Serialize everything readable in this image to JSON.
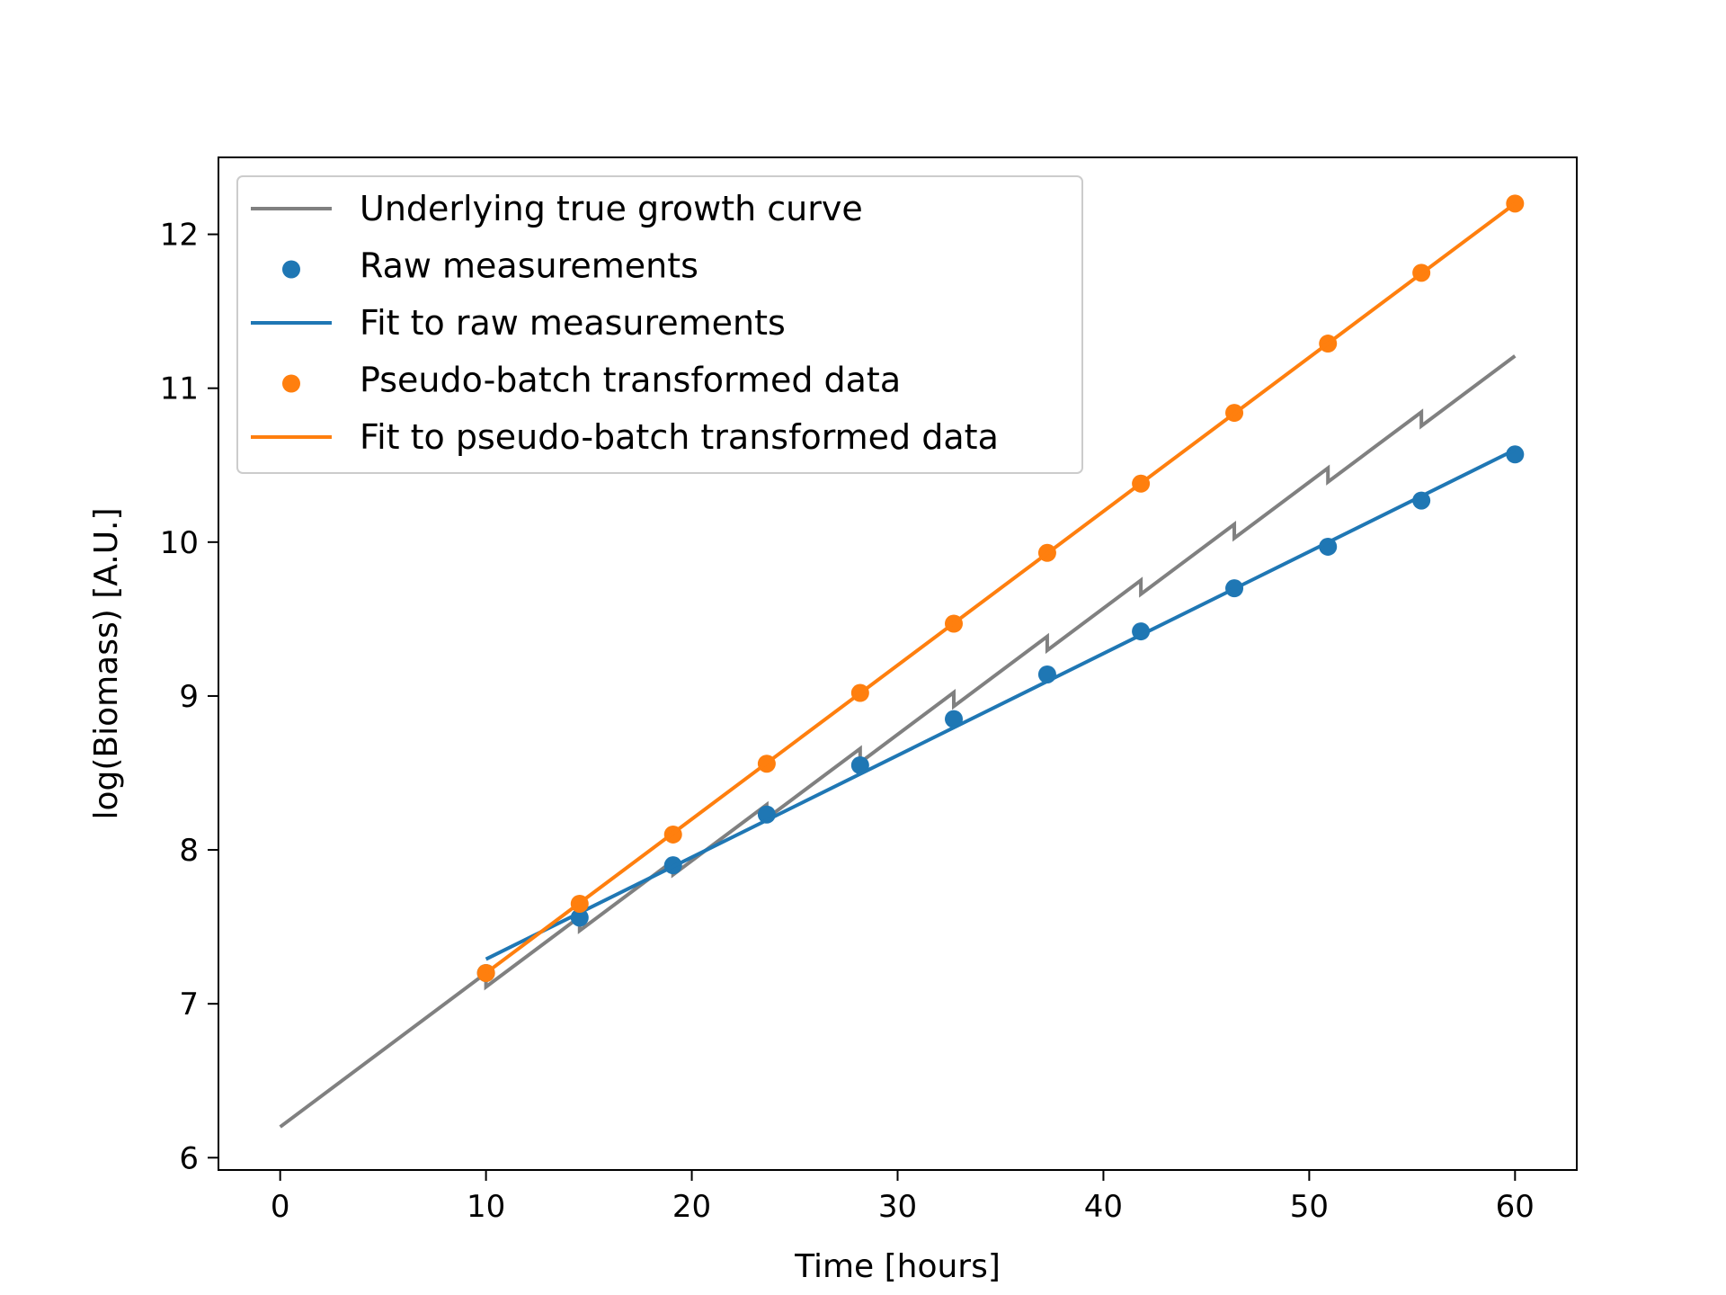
{
  "chart_data": {
    "type": "line",
    "xlabel": "Time [hours]",
    "ylabel": "log(Biomass) [A.U.]",
    "xlim": [
      -3,
      63
    ],
    "ylim": [
      5.92,
      12.5
    ],
    "xticks": [
      0,
      10,
      20,
      30,
      40,
      50,
      60
    ],
    "yticks": [
      6,
      7,
      8,
      9,
      10,
      11,
      12
    ],
    "grid": false,
    "legend_position": "top-left",
    "colors": {
      "true_curve": "#808080",
      "raw": "#1f77b4",
      "pseudo": "#ff7f0e"
    },
    "series": [
      {
        "name": "Underlying true growth curve",
        "kind": "line",
        "dilution_times": [
          10,
          14.55,
          19.09,
          23.64,
          28.18,
          32.73,
          37.27,
          41.82,
          46.36,
          50.91,
          55.45
        ],
        "dilution_drop": 0.09,
        "start": {
          "x": 0,
          "y": 6.2
        },
        "slope_per_hour": 0.1
      },
      {
        "name": "Raw measurements",
        "kind": "scatter",
        "x": [
          10,
          14.55,
          19.09,
          23.64,
          28.18,
          32.73,
          37.27,
          41.82,
          46.36,
          50.91,
          55.45,
          60
        ],
        "y": [
          7.2,
          7.56,
          7.9,
          8.23,
          8.55,
          8.85,
          9.14,
          9.42,
          9.7,
          9.97,
          10.27,
          10.57
        ]
      },
      {
        "name": "Fit to raw measurements",
        "kind": "line",
        "x": [
          10,
          60
        ],
        "y": [
          7.29,
          10.6
        ]
      },
      {
        "name": "Pseudo-batch transformed data",
        "kind": "scatter",
        "x": [
          10,
          14.55,
          19.09,
          23.64,
          28.18,
          32.73,
          37.27,
          41.82,
          46.36,
          50.91,
          55.45,
          60
        ],
        "y": [
          7.2,
          7.65,
          8.1,
          8.56,
          9.02,
          9.47,
          9.93,
          10.38,
          10.84,
          11.29,
          11.75,
          12.2
        ]
      },
      {
        "name": "Fit to pseudo-batch transformed data",
        "kind": "line",
        "x": [
          10,
          60
        ],
        "y": [
          7.2,
          12.2
        ]
      }
    ]
  }
}
